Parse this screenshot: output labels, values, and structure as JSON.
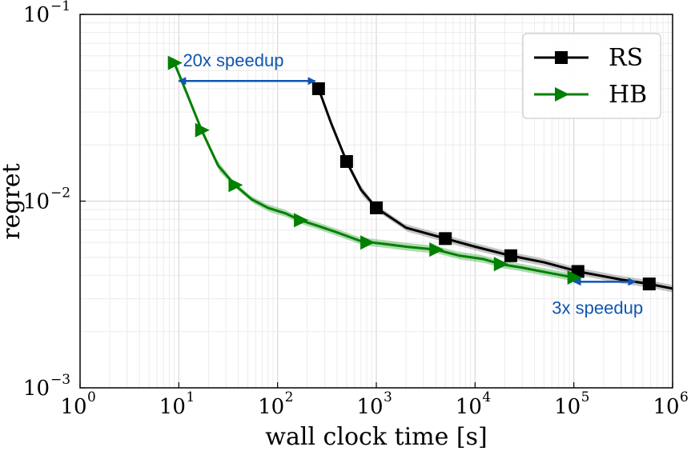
{
  "chart_data": {
    "type": "line",
    "title": "",
    "xlabel": "wall clock time [s]",
    "ylabel": "regret",
    "xscale": "log",
    "yscale": "log",
    "xlim": [
      1,
      1000000
    ],
    "ylim": [
      0.001,
      0.1
    ],
    "grid": true,
    "legend_position": "top-right",
    "x_ticks": [
      {
        "base": "10",
        "exp": "0",
        "value": 1
      },
      {
        "base": "10",
        "exp": "1",
        "value": 10
      },
      {
        "base": "10",
        "exp": "2",
        "value": 100
      },
      {
        "base": "10",
        "exp": "3",
        "value": 1000
      },
      {
        "base": "10",
        "exp": "4",
        "value": 10000
      },
      {
        "base": "10",
        "exp": "5",
        "value": 100000
      },
      {
        "base": "10",
        "exp": "6",
        "value": 1000000
      }
    ],
    "y_ticks": [
      {
        "base": "10",
        "exp": "−3",
        "value": 0.001
      },
      {
        "base": "10",
        "exp": "−2",
        "value": 0.01
      },
      {
        "base": "10",
        "exp": "−1",
        "value": 0.1
      }
    ],
    "series": [
      {
        "name": "RS",
        "color": "#000000",
        "band_color": "#808080",
        "marker": "square",
        "x": [
          260,
          350,
          500,
          700,
          1000,
          2000,
          5000,
          10000,
          23000,
          50000,
          110000,
          300000,
          580000,
          1000000
        ],
        "y": [
          0.04,
          0.026,
          0.0163,
          0.0115,
          0.0092,
          0.0072,
          0.0063,
          0.0057,
          0.0051,
          0.0047,
          0.0042,
          0.0038,
          0.0036,
          0.0034
        ],
        "markers_x": [
          260,
          500,
          1000,
          5000,
          23000,
          110000,
          580000
        ],
        "markers_y": [
          0.04,
          0.0163,
          0.0092,
          0.0063,
          0.0051,
          0.0042,
          0.0036
        ]
      },
      {
        "name": "HB",
        "color": "#008000",
        "band_color": "#4caf50",
        "marker": "triangle-right",
        "x": [
          9,
          12,
          17,
          25,
          37,
          55,
          80,
          120,
          170,
          250,
          400,
          700,
          1200,
          2000,
          4000,
          7000,
          12000,
          18000,
          30000,
          60000,
          100000
        ],
        "y": [
          0.055,
          0.038,
          0.024,
          0.0155,
          0.0122,
          0.0102,
          0.0092,
          0.0086,
          0.0079,
          0.0074,
          0.0068,
          0.0061,
          0.0059,
          0.0057,
          0.0055,
          0.0051,
          0.0049,
          0.0046,
          0.0044,
          0.0041,
          0.0039
        ],
        "markers_x": [
          9,
          17,
          37,
          170,
          800,
          4000,
          18000,
          100000
        ],
        "markers_y": [
          0.055,
          0.024,
          0.0122,
          0.0079,
          0.006,
          0.0055,
          0.0046,
          0.0039
        ]
      }
    ],
    "annotations": [
      {
        "text": "20x speedup",
        "from": [
          10,
          0.044
        ],
        "to": [
          240,
          0.044
        ],
        "label_at": [
          11,
          0.057
        ]
      },
      {
        "text": "3x speedup",
        "from": [
          100000,
          0.0037
        ],
        "to": [
          420000,
          0.0037
        ],
        "label_at": [
          60000,
          0.0027
        ]
      }
    ]
  }
}
